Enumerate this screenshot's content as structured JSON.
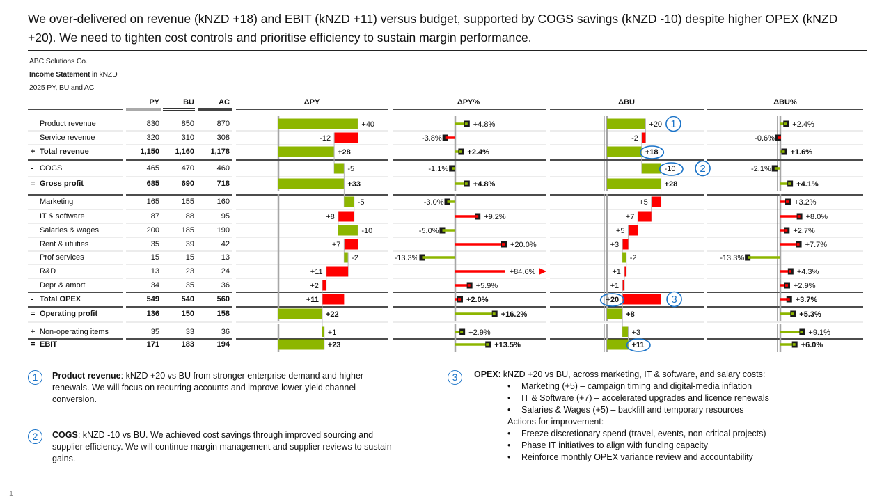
{
  "headline": "We over-delivered on revenue (kNZD +18) and EBIT (kNZD +11) versus budget, supported by COGS savings (kNZD -10) despite higher OPEX (kNZD +20). We need to tighten cost controls and prioritise efficiency to sustain margin performance.",
  "meta": {
    "company": "ABC Solutions Co.",
    "statement_bold": "Income Statement",
    "statement_unit": " in kNZD",
    "period": "2025 PY, BU and AC"
  },
  "colors": {
    "positive": "#8db600",
    "negative": "#ff0000",
    "marker": "#1a1a1a",
    "axis": "#a6a6a6",
    "callout": "#1a73c8"
  },
  "chart_data": {
    "type": "table",
    "title": "Income Statement in kNZD",
    "columns": [
      "PY",
      "BU",
      "AC"
    ],
    "chart_columns": [
      "ΔPY",
      "ΔPY%",
      "ΔBU",
      "ΔBU%"
    ],
    "rows": [
      {
        "prefix": "",
        "label": "Product revenue",
        "bold": false,
        "py": 830,
        "bu": 850,
        "ac": 870,
        "dpy": 40,
        "dpy_label": "+40",
        "dpy_pct": 4.8,
        "dpy_pct_label": "+4.8%",
        "dbu": 20,
        "dbu_label": "+20",
        "dbu_pct": 2.4,
        "dbu_pct_label": "+2.4%",
        "sign": 1,
        "kind": "delta",
        "callout_badge": "1"
      },
      {
        "prefix": "",
        "label": "Service revenue",
        "bold": false,
        "py": 320,
        "bu": 310,
        "ac": 308,
        "dpy": -12,
        "dpy_label": "-12",
        "dpy_pct": -3.8,
        "dpy_pct_label": "-3.8%",
        "dbu": -2,
        "dbu_label": "-2",
        "dbu_pct": -0.6,
        "dbu_pct_label": "-0.6%",
        "sign": 1,
        "kind": "delta"
      },
      {
        "prefix": "+",
        "label": "Total revenue",
        "bold": true,
        "py": "1,150",
        "bu": "1,160",
        "ac": "1,178",
        "dpy": 28,
        "dpy_label": "+28",
        "dpy_pct": 2.4,
        "dpy_pct_label": "+2.4%",
        "dbu": 18,
        "dbu_label": "+18",
        "dbu_pct": 1.6,
        "dbu_pct_label": "+1.6%",
        "sign": 1,
        "kind": "total",
        "dbu_circled": true,
        "rule": "thick"
      },
      {
        "prefix": "-",
        "label": "COGS",
        "bold": false,
        "py": 465,
        "bu": 470,
        "ac": 460,
        "dpy": -5,
        "dpy_label": "-5",
        "dpy_pct": -1.1,
        "dpy_pct_label": "-1.1%",
        "dbu": -10,
        "dbu_label": "-10",
        "dbu_pct": -2.1,
        "dbu_pct_label": "-2.1%",
        "sign": -1,
        "kind": "delta",
        "dbu_circled": true,
        "callout_badge": "2"
      },
      {
        "prefix": "=",
        "label": "Gross profit",
        "bold": true,
        "py": 685,
        "bu": 690,
        "ac": 718,
        "dpy": 33,
        "dpy_label": "+33",
        "dpy_pct": 4.8,
        "dpy_pct_label": "+4.8%",
        "dbu": 28,
        "dbu_label": "+28",
        "dbu_pct": 4.1,
        "dbu_pct_label": "+4.1%",
        "sign": 1,
        "kind": "total",
        "rule": "thick"
      },
      {
        "prefix": "",
        "label": "Marketing",
        "bold": false,
        "py": 165,
        "bu": 155,
        "ac": 160,
        "dpy": -5,
        "dpy_label": "-5",
        "dpy_pct": -3.0,
        "dpy_pct_label": "-3.0%",
        "dbu": 5,
        "dbu_label": "+5",
        "dbu_pct": 3.2,
        "dbu_pct_label": "+3.2%",
        "sign": -1,
        "kind": "delta"
      },
      {
        "prefix": "",
        "label": "IT & software",
        "bold": false,
        "py": 87,
        "bu": 88,
        "ac": 95,
        "dpy": 8,
        "dpy_label": "+8",
        "dpy_pct": 9.2,
        "dpy_pct_label": "+9.2%",
        "dbu": 7,
        "dbu_label": "+7",
        "dbu_pct": 8.0,
        "dbu_pct_label": "+8.0%",
        "sign": -1,
        "kind": "delta"
      },
      {
        "prefix": "",
        "label": "Salaries & wages",
        "bold": false,
        "py": 200,
        "bu": 185,
        "ac": 190,
        "dpy": -10,
        "dpy_label": "-10",
        "dpy_pct": -5.0,
        "dpy_pct_label": "-5.0%",
        "dbu": 5,
        "dbu_label": "+5",
        "dbu_pct": 2.7,
        "dbu_pct_label": "+2.7%",
        "sign": -1,
        "kind": "delta"
      },
      {
        "prefix": "",
        "label": "Rent & utilities",
        "bold": false,
        "py": 35,
        "bu": 39,
        "ac": 42,
        "dpy": 7,
        "dpy_label": "+7",
        "dpy_pct": 20.0,
        "dpy_pct_label": "+20.0%",
        "dbu": 3,
        "dbu_label": "+3",
        "dbu_pct": 7.7,
        "dbu_pct_label": "+7.7%",
        "sign": -1,
        "kind": "delta"
      },
      {
        "prefix": "",
        "label": "Prof services",
        "bold": false,
        "py": 15,
        "bu": 15,
        "ac": 13,
        "dpy": -2,
        "dpy_label": "-2",
        "dpy_pct": -13.3,
        "dpy_pct_label": "-13.3%",
        "dbu": -2,
        "dbu_label": "-2",
        "dbu_pct": -13.3,
        "dbu_pct_label": "-13.3%",
        "sign": -1,
        "kind": "delta"
      },
      {
        "prefix": "",
        "label": "R&D",
        "bold": false,
        "py": 13,
        "bu": 23,
        "ac": 24,
        "dpy": 11,
        "dpy_label": "+11",
        "dpy_pct": 84.6,
        "dpy_pct_label": "+84.6%",
        "dpy_pct_clipped": true,
        "dbu": 1,
        "dbu_label": "+1",
        "dbu_pct": 4.3,
        "dbu_pct_label": "+4.3%",
        "sign": -1,
        "kind": "delta"
      },
      {
        "prefix": "",
        "label": "Depr & amort",
        "bold": false,
        "py": 34,
        "bu": 35,
        "ac": 36,
        "dpy": 2,
        "dpy_label": "+2",
        "dpy_pct": 5.9,
        "dpy_pct_label": "+5.9%",
        "dbu": 1,
        "dbu_label": "+1",
        "dbu_pct": 2.9,
        "dbu_pct_label": "+2.9%",
        "sign": -1,
        "kind": "delta",
        "rule": "thick"
      },
      {
        "prefix": "-",
        "label": "Total OPEX",
        "bold": true,
        "py": 549,
        "bu": 540,
        "ac": 560,
        "dpy": 11,
        "dpy_label": "+11",
        "dpy_pct": 2.0,
        "dpy_pct_label": "+2.0%",
        "dbu": 20,
        "dbu_label": "+20",
        "dbu_pct": 3.7,
        "dbu_pct_label": "+3.7%",
        "sign": -1,
        "kind": "subtotal",
        "dbu_circled": true,
        "callout_badge": "3",
        "rule": "thick"
      },
      {
        "prefix": "=",
        "label": "Operating profit",
        "bold": true,
        "py": 136,
        "bu": 150,
        "ac": 158,
        "dpy": 22,
        "dpy_label": "+22",
        "dpy_pct": 16.2,
        "dpy_pct_label": "+16.2%",
        "dbu": 8,
        "dbu_label": "+8",
        "dbu_pct": 5.3,
        "dbu_pct_label": "+5.3%",
        "sign": 1,
        "kind": "total"
      },
      {
        "prefix": "+",
        "label": "Non-operating items",
        "bold": false,
        "py": 35,
        "bu": 33,
        "ac": 36,
        "dpy": 1,
        "dpy_label": "+1",
        "dpy_pct": 2.9,
        "dpy_pct_label": "+2.9%",
        "dbu": 3,
        "dbu_label": "+3",
        "dbu_pct": 9.1,
        "dbu_pct_label": "+9.1%",
        "sign": 1,
        "kind": "delta",
        "rule": "thick"
      },
      {
        "prefix": "=",
        "label": "EBIT",
        "bold": true,
        "py": 171,
        "bu": 183,
        "ac": 194,
        "dpy": 23,
        "dpy_label": "+23",
        "dpy_pct": 13.5,
        "dpy_pct_label": "+13.5%",
        "dbu": 11,
        "dbu_label": "+11",
        "dbu_pct": 6.0,
        "dbu_pct_label": "+6.0%",
        "sign": 1,
        "kind": "total",
        "dbu_circled": true
      }
    ]
  },
  "notes": [
    {
      "badge": "1",
      "title": "Product revenue",
      "sep": ": ",
      "text": "kNZD +20 vs BU from stronger enterprise demand and higher renewals. We will focus on recurring accounts and improve lower-yield channel conversion."
    },
    {
      "badge": "2",
      "title": "COGS",
      "sep": ": ",
      "text": "kNZD -10 vs BU. We achieved cost savings through improved sourcing and supplier efficiency. We will continue margin management and supplier reviews to sustain gains."
    },
    {
      "badge": "3",
      "title": "OPEX",
      "sep": ": ",
      "text": "kNZD +20 vs BU, across marketing, IT & software, and salary costs:",
      "bullets": [
        "Marketing (+5) – campaign timing and digital-media inflation",
        "IT & Software (+7) – accelerated upgrades and licence renewals",
        "Salaries & Wages (+5) – backfill and temporary resources"
      ],
      "actions_heading": "Actions for improvement:",
      "actions": [
        "Freeze discretionary spend (travel, events, non-critical projects)",
        "Phase IT initiatives to align with funding capacity",
        "Reinforce monthly OPEX variance review and accountability"
      ]
    }
  ],
  "page_number": "1"
}
